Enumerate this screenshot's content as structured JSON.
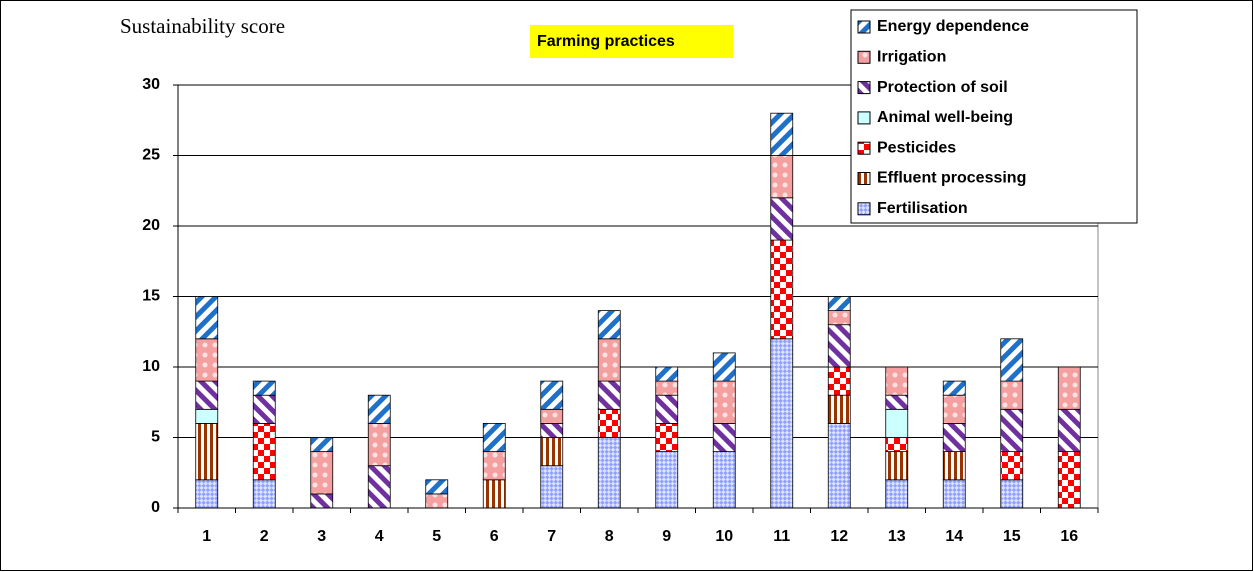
{
  "chart_data": {
    "type": "stacked-bar",
    "title": "Farming practices",
    "y_label": "Sustainability score",
    "categories": [
      "1",
      "2",
      "3",
      "4",
      "5",
      "6",
      "7",
      "8",
      "9",
      "10",
      "11",
      "12",
      "13",
      "14",
      "15",
      "16"
    ],
    "series": [
      {
        "name": "Fertilisation",
        "color": "#8fa0ff",
        "pattern": "checker-small",
        "values": [
          2,
          2,
          0,
          0,
          0,
          0,
          3,
          5,
          4,
          4,
          12,
          6,
          2,
          2,
          2,
          0
        ]
      },
      {
        "name": "Effluent processing",
        "color": "#993300",
        "pattern": "vertical",
        "values": [
          4,
          0,
          0,
          0,
          0,
          2,
          2,
          0,
          0,
          0,
          0,
          2,
          2,
          2,
          0,
          0
        ]
      },
      {
        "name": "Pesticides",
        "color": "#ff0000",
        "pattern": "checker",
        "values": [
          0,
          4,
          0,
          0,
          0,
          0,
          0,
          2,
          2,
          0,
          7,
          2,
          1,
          0,
          2,
          4
        ]
      },
      {
        "name": "Animal well-being",
        "color": "#ccffff",
        "pattern": "solid",
        "values": [
          1,
          0,
          0,
          0,
          0,
          0,
          0,
          0,
          0,
          0,
          0,
          0,
          2,
          0,
          0,
          0
        ]
      },
      {
        "name": "Protection of soil",
        "color": "#7030a0",
        "pattern": "diagonal-up",
        "values": [
          2,
          2,
          1,
          3,
          0,
          0,
          1,
          2,
          2,
          2,
          3,
          3,
          1,
          2,
          3,
          3
        ]
      },
      {
        "name": "Irrigation",
        "color": "#f4a0a0",
        "pattern": "dots",
        "values": [
          3,
          0,
          3,
          3,
          1,
          2,
          1,
          3,
          1,
          3,
          3,
          1,
          2,
          2,
          2,
          3
        ]
      },
      {
        "name": "Energy dependence",
        "color": "#1f70c8",
        "pattern": "diagonal-down",
        "values": [
          3,
          1,
          1,
          2,
          1,
          2,
          2,
          2,
          1,
          2,
          3,
          1,
          0,
          1,
          3,
          0
        ]
      }
    ],
    "ylim": [
      0,
      30
    ],
    "yticks": [
      0,
      5,
      10,
      15,
      20,
      25,
      30
    ],
    "grid": true,
    "legend": "top-right"
  }
}
